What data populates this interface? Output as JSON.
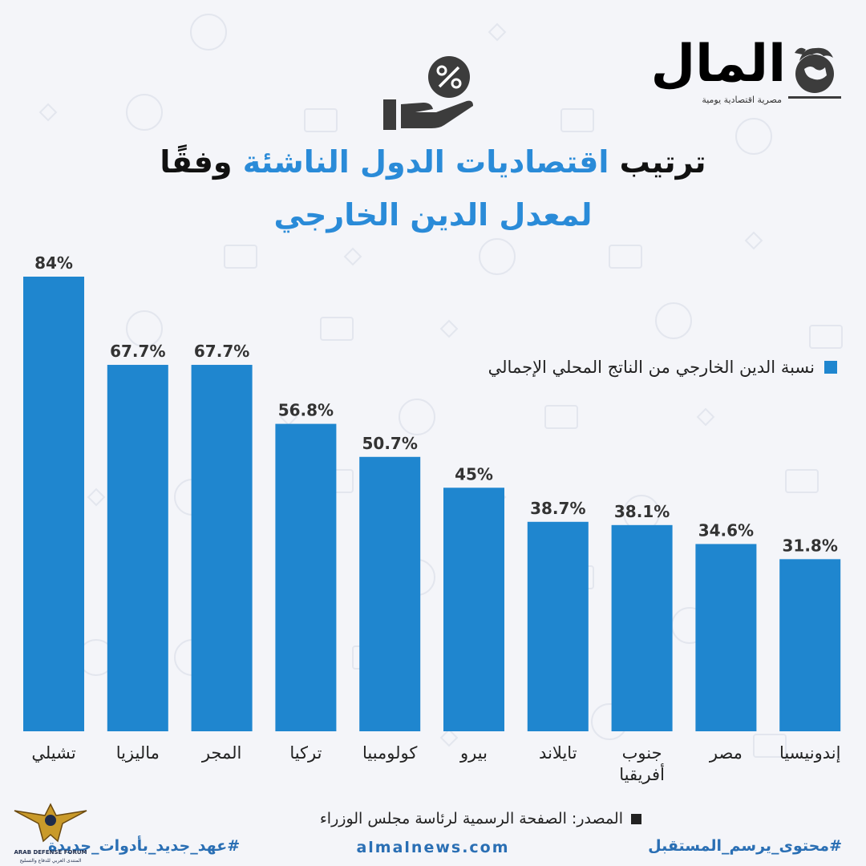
{
  "header": {
    "title_line_1_part_a": "ترتيب",
    "title_line_1_part_b": "اقتصاديات الدول الناشئة",
    "title_line_1_part_c": "وفقًا",
    "title_line_2": "لمعدل الدين الخارجي"
  },
  "brand": {
    "logo_name": "المال",
    "logo_subtitle": "مصرية اقتصادية يومية",
    "website": "almalnews.com",
    "hashtag_left": "#عهد_جديد_بأدوات_جديدة",
    "hashtag_right": "#محتوى_يرسم_المستقبل",
    "emblem_caption_1": "ARAB DEFENSE FORUM",
    "emblem_caption_2": "المنتدى العربي للدفاع والتسليح"
  },
  "icons": {
    "hand": "hand-holding-percent-icon",
    "logo": "globe-bull-icon",
    "legend": "square-swatch-icon",
    "source": "square-bullet-icon",
    "emblem": "eagle-emblem-icon"
  },
  "colors": {
    "bar": "#1f86cf",
    "title_dark": "#111111",
    "title_accent": "#2a8bd8",
    "logo_blue": "#3a8fd0",
    "footer_blue": "#2a6fb4",
    "icon_dark": "#3c3c3c"
  },
  "source_text": "المصدر: الصفحة الرسمية لرئاسة مجلس الوزراء",
  "chart_data": {
    "type": "bar",
    "title": "ترتيب اقتصاديات الدول الناشئة وفقًا لمعدل الدين الخارجي",
    "categories": [
      "تشيلي",
      "ماليزيا",
      "المجر",
      "تركيا",
      "كولومبيا",
      "بيرو",
      "تايلاند",
      "جنوب أفريقيا",
      "مصر",
      "إندونيسيا"
    ],
    "category_lines": [
      [
        "تشيلي"
      ],
      [
        "ماليزيا"
      ],
      [
        "المجر"
      ],
      [
        "تركيا"
      ],
      [
        "كولومبيا"
      ],
      [
        "بيرو"
      ],
      [
        "تايلاند"
      ],
      [
        "جنوب",
        "أفريقيا"
      ],
      [
        "مصر"
      ],
      [
        "إندونيسيا"
      ]
    ],
    "series": [
      {
        "name": "نسبة الدين الخارجي من الناتج المحلي الإجمالي",
        "values": [
          84,
          67.7,
          67.7,
          56.8,
          50.7,
          45,
          38.7,
          38.1,
          34.6,
          31.8
        ],
        "value_labels": [
          "84%",
          "67.7%",
          "67.7%",
          "56.8%",
          "50.7%",
          "45%",
          "38.7%",
          "38.1%",
          "34.6%",
          "31.8%"
        ],
        "color": "#1f86cf"
      }
    ],
    "ylim": [
      0,
      100
    ],
    "grid": false,
    "legend_position": "upper-right",
    "xlabel": "",
    "ylabel": ""
  }
}
